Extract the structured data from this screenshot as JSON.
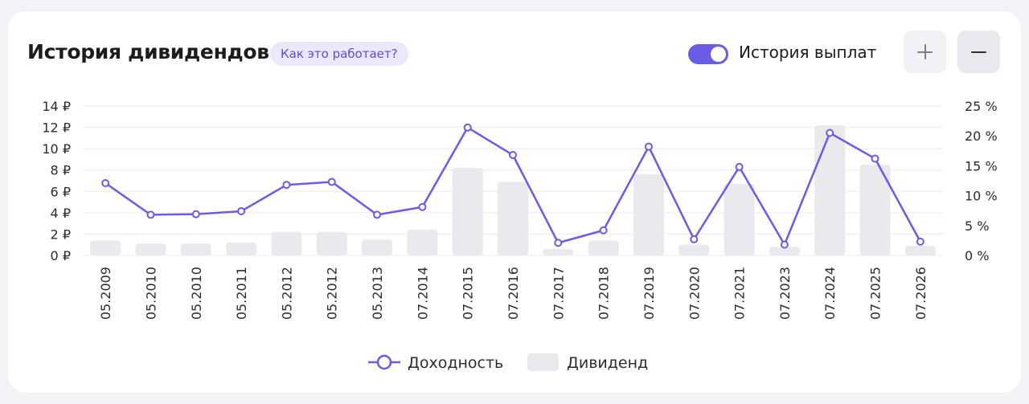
{
  "header": {
    "title": "История дивидендов",
    "help_label": "Как это работает?",
    "toggle_label": "История выплат",
    "toggle_on": true,
    "plus_icon": "plus-icon",
    "minus_icon": "minus-icon"
  },
  "colors": {
    "accent": "#6b5ce7",
    "bar": "#e9e9ee",
    "grid": "#ececf1"
  },
  "chart_data": {
    "type": "bar",
    "categories": [
      "05.2009",
      "05.2010",
      "05.2010",
      "05.2011",
      "05.2012",
      "05.2012",
      "05.2013",
      "07.2014",
      "07.2015",
      "07.2016",
      "07.2017",
      "07.2018",
      "07.2019",
      "07.2020",
      "07.2021",
      "07.2023",
      "07.2024",
      "07.2025",
      "07.2026"
    ],
    "series": [
      {
        "name": "Дивиденд",
        "type": "bar",
        "axis": "left",
        "values": [
          1.4,
          1.1,
          1.1,
          1.2,
          2.2,
          2.2,
          1.5,
          2.4,
          8.2,
          6.9,
          0.6,
          1.4,
          7.6,
          1.0,
          6.7,
          0.8,
          12.2,
          8.5,
          0.9
        ]
      },
      {
        "name": "Доходность",
        "type": "line",
        "axis": "right",
        "values": [
          12.1,
          6.8,
          6.9,
          7.4,
          11.8,
          12.3,
          6.8,
          8.1,
          21.4,
          16.8,
          2.1,
          4.2,
          18.2,
          2.7,
          14.8,
          1.8,
          20.5,
          16.2,
          2.3
        ]
      }
    ],
    "y_left": {
      "ticks": [
        "0 ₽",
        "2 ₽",
        "4 ₽",
        "6 ₽",
        "8 ₽",
        "10 ₽",
        "12 ₽",
        "14 ₽"
      ],
      "range": [
        0,
        14
      ]
    },
    "y_right": {
      "ticks": [
        "0 %",
        "5 %",
        "10 %",
        "15 %",
        "20 %",
        "25 %"
      ],
      "range": [
        0,
        25
      ]
    },
    "legend": [
      {
        "label": "Доходность",
        "kind": "line"
      },
      {
        "label": "Дивиденд",
        "kind": "bar"
      }
    ],
    "legend_position": "bottom-center",
    "grid": true
  }
}
